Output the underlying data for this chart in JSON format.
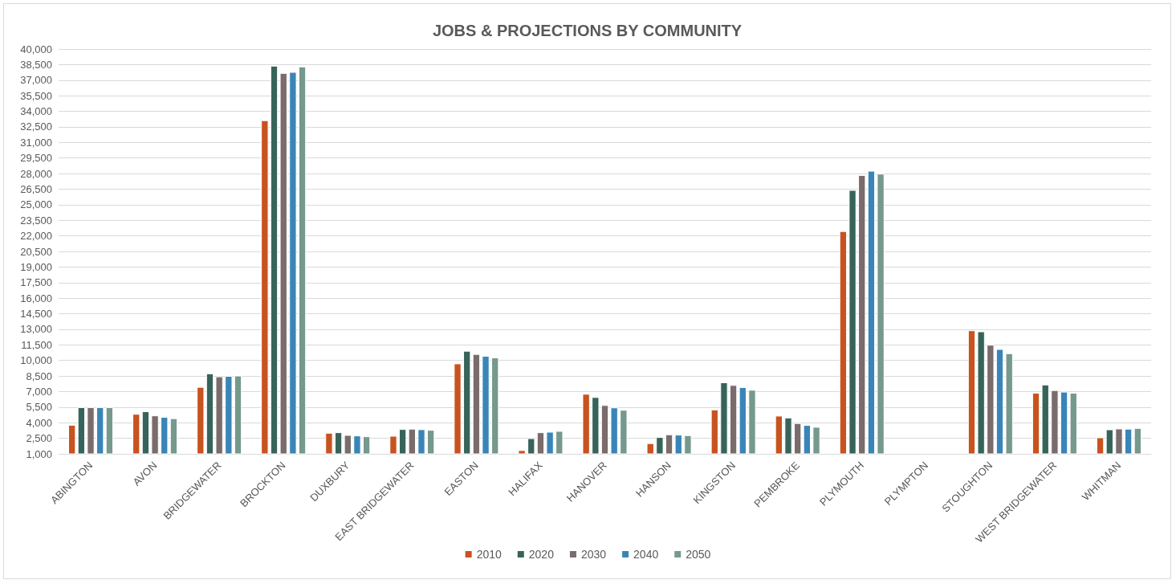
{
  "chart_data": {
    "type": "bar",
    "title": "JOBS & PROJECTIONS BY COMMUNITY",
    "categories": [
      "ABINGTON",
      "AVON",
      "BRIDGEWATER",
      "BROCKTON",
      "DUXBURY",
      "EAST BRIDGEWATER",
      "EASTON",
      "HALIFAX",
      "HANOVER",
      "HANSON",
      "KINGSTON",
      "PEMBROKE",
      "PLYMOUTH",
      "PLYMPTON",
      "STOUGHTON",
      "WEST BRIDGEWATER",
      "WHITMAN"
    ],
    "series": [
      {
        "name": "2010",
        "color": "#c8531e",
        "values": [
          3800,
          4850,
          7450,
          33140,
          3030,
          2740,
          9710,
          1360,
          6780,
          2030,
          5270,
          4680,
          22460,
          null,
          12900,
          6890,
          2590
        ]
      },
      {
        "name": "2020",
        "color": "#37645a",
        "values": [
          5500,
          5100,
          8750,
          38390,
          3080,
          3390,
          10930,
          2510,
          6470,
          2620,
          7890,
          4500,
          26420,
          null,
          12800,
          7680,
          3360
        ]
      },
      {
        "name": "2030",
        "color": "#7a6c6c",
        "values": [
          5500,
          4700,
          8460,
          37690,
          2820,
          3420,
          10620,
          3080,
          5700,
          2880,
          7630,
          3960,
          27860,
          null,
          11510,
          7140,
          3440
        ]
      },
      {
        "name": "2040",
        "color": "#3a85b8",
        "values": [
          5500,
          4560,
          8510,
          37790,
          2770,
          3370,
          10440,
          3130,
          5470,
          2850,
          7430,
          3780,
          28270,
          null,
          11100,
          6990,
          3420
        ]
      },
      {
        "name": "2050",
        "color": "#75998c",
        "values": [
          5500,
          4430,
          8540,
          38310,
          2690,
          3310,
          10280,
          3210,
          5240,
          2800,
          7170,
          3600,
          27990,
          null,
          10690,
          6890,
          3490
        ]
      }
    ],
    "ylim": [
      1000,
      40000
    ],
    "yticks": [
      {
        "value": 1000,
        "label": "1,000"
      },
      {
        "value": 2500,
        "label": "2,500"
      },
      {
        "value": 4000,
        "label": "4,000"
      },
      {
        "value": 5500,
        "label": "5,500"
      },
      {
        "value": 7000,
        "label": "7,000"
      },
      {
        "value": 8500,
        "label": "8,500"
      },
      {
        "value": 10000,
        "label": "10,000"
      },
      {
        "value": 11500,
        "label": "11,500"
      },
      {
        "value": 13000,
        "label": "13,000"
      },
      {
        "value": 14500,
        "label": "14,500"
      },
      {
        "value": 16000,
        "label": "16,000"
      },
      {
        "value": 17500,
        "label": "17,500"
      },
      {
        "value": 19000,
        "label": "19,000"
      },
      {
        "value": 20500,
        "label": "20,500"
      },
      {
        "value": 22000,
        "label": "22,000"
      },
      {
        "value": 23500,
        "label": "23,500"
      },
      {
        "value": 25000,
        "label": "25,000"
      },
      {
        "value": 26500,
        "label": "26,500"
      },
      {
        "value": 28000,
        "label": "28,000"
      },
      {
        "value": 29500,
        "label": "29,500"
      },
      {
        "value": 31000,
        "label": "31,000"
      },
      {
        "value": 32500,
        "label": "32,500"
      },
      {
        "value": 34000,
        "label": "34,000"
      },
      {
        "value": 35500,
        "label": "35,500"
      },
      {
        "value": 37000,
        "label": "37,000"
      },
      {
        "value": 38500,
        "label": "38,500"
      },
      {
        "value": 40000,
        "label": "40,000"
      }
    ],
    "grid": "y",
    "legend": "bottom"
  }
}
